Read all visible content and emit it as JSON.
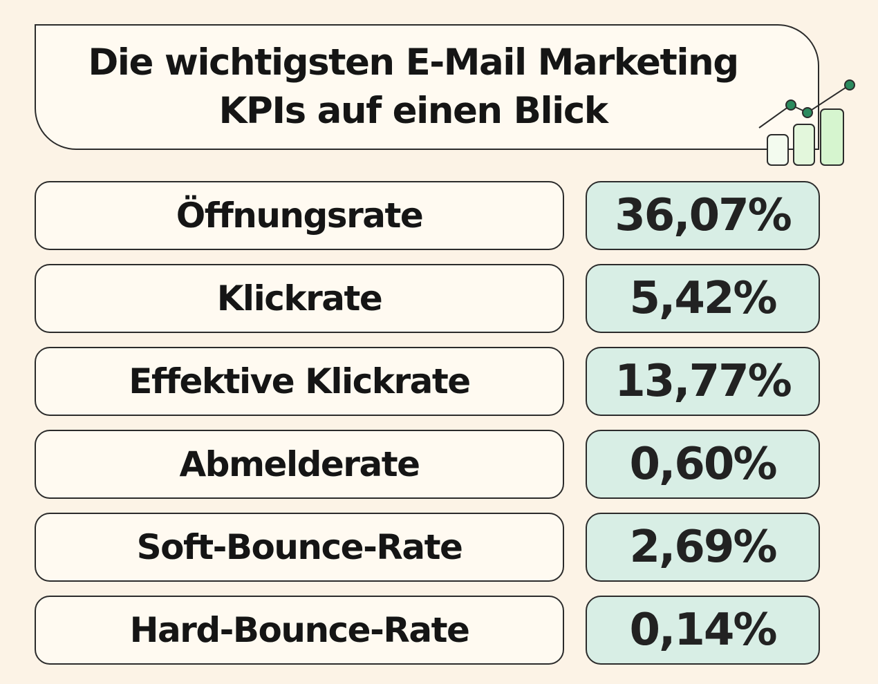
{
  "header": {
    "title_line1": "Die wichtigsten E-Mail Marketing",
    "title_line2": "KPIs auf einen Blick",
    "decoration_icon": "bar-chart-growth-icon",
    "colors": {
      "accent": "#2b8a5e",
      "bar_fill": "#d6f5cf",
      "value_bg": "#d8eee5"
    }
  },
  "kpis": [
    {
      "label": "Öffnungsrate",
      "value": "36,07%"
    },
    {
      "label": "Klickrate",
      "value": "5,42%"
    },
    {
      "label": "Effektive Klickrate",
      "value": "13,77%"
    },
    {
      "label": "Abmelderate",
      "value": "0,60%"
    },
    {
      "label": "Soft-Bounce-Rate",
      "value": "2,69%"
    },
    {
      "label": "Hard-Bounce-Rate",
      "value": "0,14%"
    }
  ]
}
